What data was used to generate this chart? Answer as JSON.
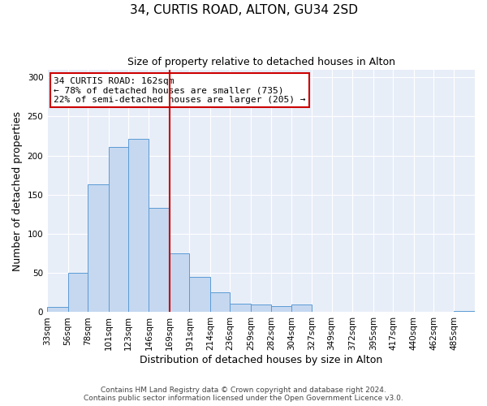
{
  "title": "34, CURTIS ROAD, ALTON, GU34 2SD",
  "subtitle": "Size of property relative to detached houses in Alton",
  "xlabel": "Distribution of detached houses by size in Alton",
  "ylabel": "Number of detached properties",
  "bin_labels": [
    "33sqm",
    "56sqm",
    "78sqm",
    "101sqm",
    "123sqm",
    "146sqm",
    "169sqm",
    "191sqm",
    "214sqm",
    "236sqm",
    "259sqm",
    "282sqm",
    "304sqm",
    "327sqm",
    "349sqm",
    "372sqm",
    "395sqm",
    "417sqm",
    "440sqm",
    "462sqm",
    "485sqm"
  ],
  "bin_edges": [
    33,
    56,
    78,
    101,
    123,
    146,
    169,
    191,
    214,
    236,
    259,
    282,
    304,
    327,
    349,
    372,
    395,
    417,
    440,
    462,
    485,
    508
  ],
  "bar_values": [
    7,
    50,
    163,
    211,
    221,
    133,
    75,
    45,
    25,
    11,
    10,
    8,
    10,
    0,
    0,
    0,
    0,
    0,
    0,
    0,
    2
  ],
  "bar_color": "#c5d8f0",
  "bar_edge_color": "#5b9bd5",
  "vline_x": 169,
  "vline_color": "#cc0000",
  "annotation_title": "34 CURTIS ROAD: 162sqm",
  "annotation_line1": "← 78% of detached houses are smaller (735)",
  "annotation_line2": "22% of semi-detached houses are larger (205) →",
  "annotation_box_color": "#cc0000",
  "ylim": [
    0,
    310
  ],
  "yticks": [
    0,
    50,
    100,
    150,
    200,
    250,
    300
  ],
  "footer1": "Contains HM Land Registry data © Crown copyright and database right 2024.",
  "footer2": "Contains public sector information licensed under the Open Government Licence v3.0.",
  "bg_color": "#e8eef8",
  "title_fontsize": 11,
  "subtitle_fontsize": 9,
  "axis_label_fontsize": 9,
  "tick_fontsize": 7.5,
  "footer_fontsize": 6.5,
  "annotation_fontsize": 8
}
